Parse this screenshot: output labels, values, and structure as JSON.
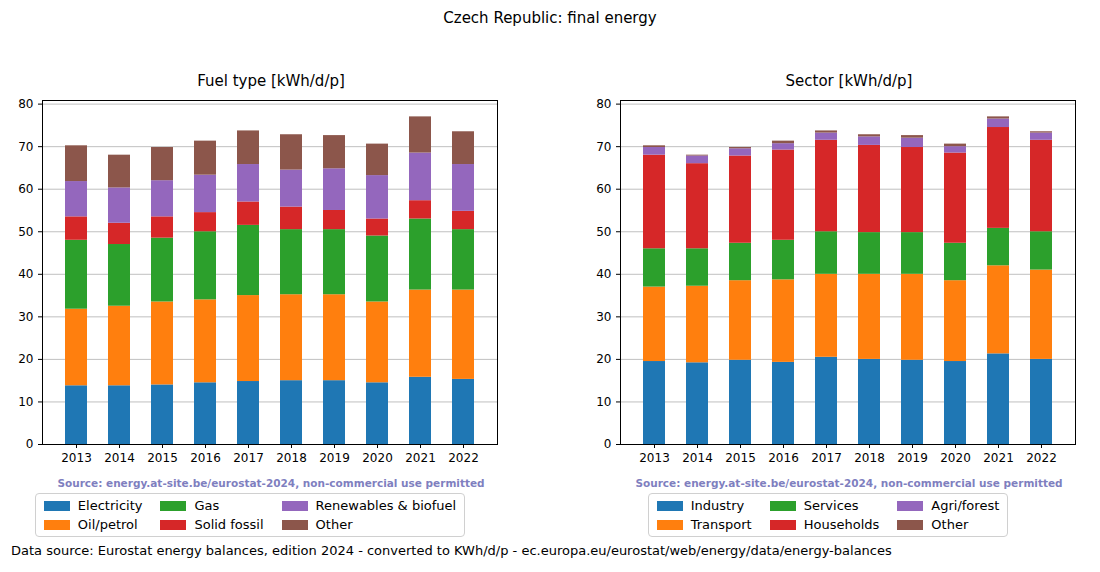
{
  "title": "Czech Republic: final energy",
  "caption": "Data source: Eurostat energy balances, edition 2024 - converted to KWh/d/p - ec.europa.eu/eurostat/web/energy/data/energy-balances",
  "chart_data": [
    {
      "type": "bar",
      "stacked": true,
      "grid": true,
      "legend": "bottom",
      "title": "Fuel type [kWh/d/p]",
      "annotation": "Source: energy.at-site.be/eurostat-2024, non-commercial use permitted",
      "categories": [
        "2013",
        "2014",
        "2015",
        "2016",
        "2017",
        "2018",
        "2019",
        "2020",
        "2021",
        "2022"
      ],
      "series": [
        {
          "name": "Electricity",
          "color": "#1f77b4",
          "values": [
            13.8,
            13.8,
            14.0,
            14.5,
            14.8,
            15.0,
            15.0,
            14.5,
            15.8,
            15.3
          ]
        },
        {
          "name": "Oil/petrol",
          "color": "#ff7f0e",
          "values": [
            18.0,
            18.7,
            19.5,
            19.5,
            20.2,
            20.2,
            20.2,
            19.0,
            20.5,
            21.0
          ]
        },
        {
          "name": "Gas",
          "color": "#2ca02c",
          "values": [
            16.2,
            14.5,
            15.0,
            16.0,
            16.5,
            15.3,
            15.3,
            15.5,
            16.7,
            14.2
          ]
        },
        {
          "name": "Solid fossil",
          "color": "#d62728",
          "values": [
            5.5,
            5.0,
            5.0,
            4.5,
            5.5,
            5.3,
            4.5,
            4.0,
            4.3,
            4.3
          ]
        },
        {
          "name": "Renewables & biofuel",
          "color": "#9467bd",
          "values": [
            8.3,
            8.3,
            8.5,
            8.8,
            8.8,
            8.7,
            9.8,
            10.2,
            11.2,
            11.0
          ]
        },
        {
          "name": "Other",
          "color": "#8c564b",
          "values": [
            8.4,
            7.7,
            7.8,
            8.0,
            7.9,
            8.3,
            7.8,
            7.4,
            8.5,
            7.7
          ]
        }
      ],
      "ylim": [
        0,
        80.85
      ],
      "yticks": [
        0,
        10,
        20,
        30,
        40,
        50,
        60,
        70,
        80
      ]
    },
    {
      "type": "bar",
      "stacked": true,
      "grid": true,
      "legend": "bottom",
      "title": "Sector [kWh/d/p]",
      "annotation": "Source: energy.at-site.be/eurostat-2024, non-commercial use permitted",
      "categories": [
        "2013",
        "2014",
        "2015",
        "2016",
        "2017",
        "2018",
        "2019",
        "2020",
        "2021",
        "2022"
      ],
      "series": [
        {
          "name": "Industry",
          "color": "#1f77b4",
          "values": [
            19.5,
            19.2,
            19.8,
            19.3,
            20.5,
            20.0,
            19.8,
            19.5,
            21.3,
            20.0
          ]
        },
        {
          "name": "Transport",
          "color": "#ff7f0e",
          "values": [
            17.5,
            18.0,
            18.7,
            19.4,
            19.5,
            20.0,
            20.2,
            19.0,
            20.7,
            21.0
          ]
        },
        {
          "name": "Services",
          "color": "#2ca02c",
          "values": [
            9.0,
            8.8,
            8.8,
            9.3,
            10.0,
            9.8,
            9.8,
            8.8,
            8.8,
            9.0
          ]
        },
        {
          "name": "Households",
          "color": "#d62728",
          "values": [
            22.0,
            20.0,
            20.5,
            21.2,
            21.5,
            20.5,
            20.0,
            21.2,
            23.7,
            21.5
          ]
        },
        {
          "name": "Agri/forest",
          "color": "#9467bd",
          "values": [
            1.8,
            1.8,
            1.7,
            1.5,
            1.7,
            2.0,
            2.2,
            1.5,
            2.0,
            1.7
          ]
        },
        {
          "name": "Other",
          "color": "#8c564b",
          "values": [
            0.4,
            0.2,
            0.3,
            0.6,
            0.5,
            0.5,
            0.6,
            0.6,
            0.5,
            0.3
          ]
        }
      ],
      "ylim": [
        0,
        80.85
      ],
      "yticks": [
        0,
        10,
        20,
        30,
        40,
        50,
        60,
        70,
        80
      ]
    }
  ]
}
